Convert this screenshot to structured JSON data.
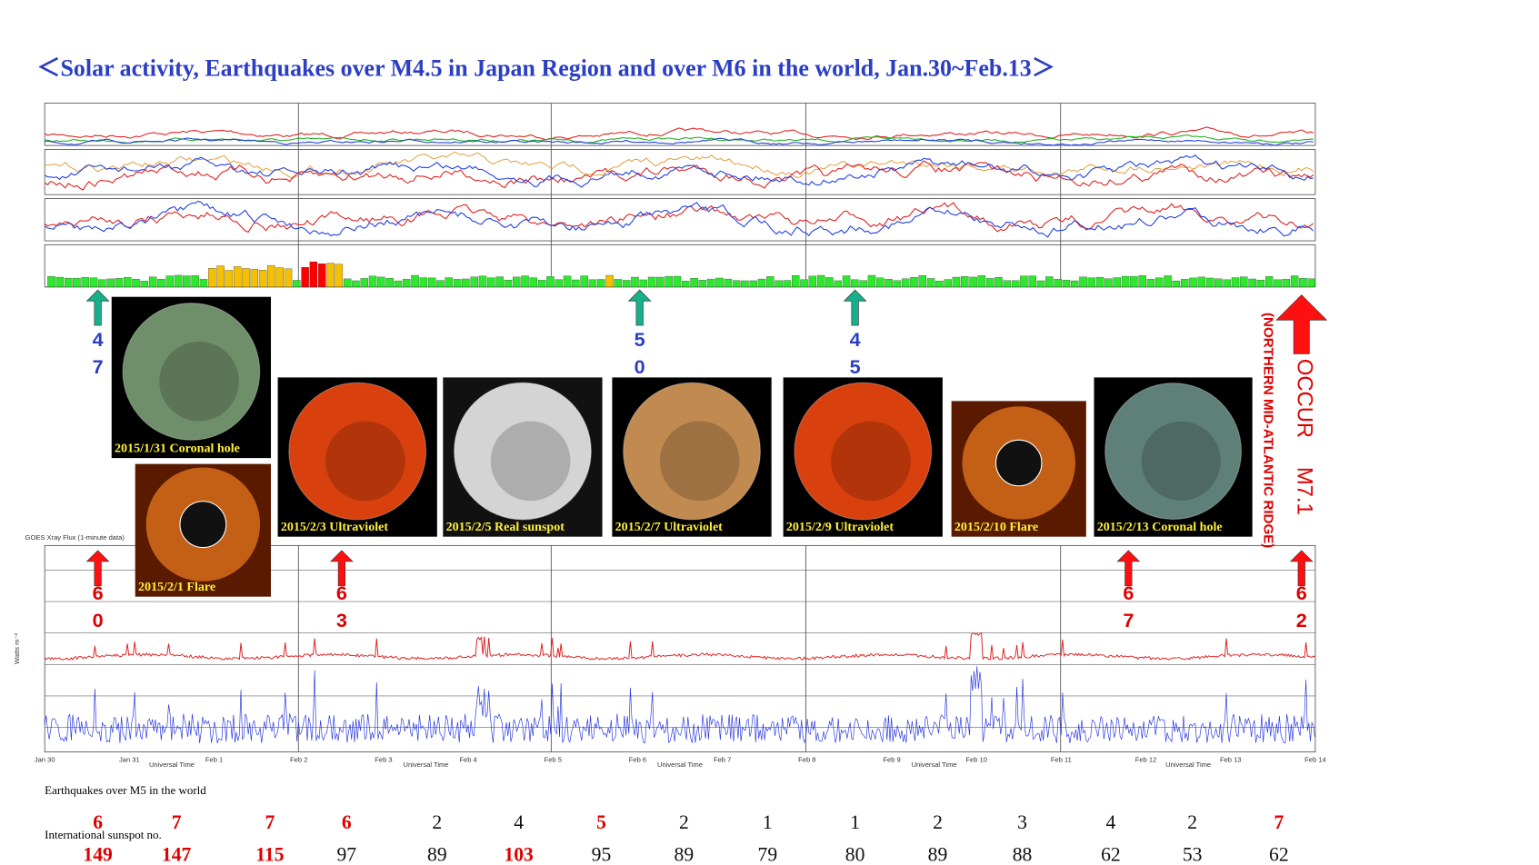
{
  "title": "＜Solar activity, Earthquakes over M4.5 in Japan Region and over M6 in the world, Jan.30~Feb.13＞",
  "xray_title": "GOES Xray Flux (1-minute data)",
  "xray_ylabel": "Watts m⁻²",
  "xray_xlabel": "Universal Time",
  "date_labels": [
    "Jan 30",
    "Jan 31",
    "Feb 1",
    "Feb 2",
    "Feb 3",
    "Feb 4",
    "Feb 5",
    "Feb 6",
    "Feb 7",
    "Feb 8",
    "Feb 9",
    "Feb 10",
    "Feb 11",
    "Feb 12",
    "Feb 13",
    "Feb 14"
  ],
  "images": [
    {
      "caption": "2015/1/31 Coronal hole",
      "color": "#6f8f6a",
      "coronagraph": false
    },
    {
      "caption": "2015/2/1 Flare",
      "color": "#e8781e",
      "coronagraph": true
    },
    {
      "caption": "2015/2/3 Ultraviolet",
      "color": "#d8400e",
      "coronagraph": false
    },
    {
      "caption": "2015/2/5 Real sunspot",
      "color": "#d4d4d4",
      "coronagraph": false
    },
    {
      "caption": "2015/2/7 Ultraviolet",
      "color": "#c08a50",
      "coronagraph": false
    },
    {
      "caption": "2015/2/9 Ultraviolet",
      "color": "#d8400e",
      "coronagraph": false
    },
    {
      "caption": "2015/2/10 Flare",
      "color": "#e8781e",
      "coronagraph": true
    },
    {
      "caption": "2015/2/13 Coronal hole",
      "color": "#5f8078",
      "coronagraph": false
    }
  ],
  "japan_quakes": [
    "4.7",
    "5.0",
    "4.5"
  ],
  "world_quakes": [
    "6.0",
    "6.3",
    "6.7",
    "6.2"
  ],
  "major_quake": {
    "label": "OCCUR",
    "magnitude": "M7.1",
    "location": "(NORTHERN MID-ATLANTIC RIDGE)"
  },
  "world_count_label": "Earthquakes over M5 in the world",
  "world_counts": [
    6,
    7,
    7,
    6,
    2,
    4,
    5,
    2,
    1,
    1,
    2,
    3,
    4,
    2,
    7
  ],
  "world_counts_colors": [
    "#e00000",
    "#e00000",
    "#e00000",
    "#e00000",
    "#111",
    "#111",
    "#e00000",
    "#111",
    "#111",
    "#111",
    "#111",
    "#111",
    "#111",
    "#111",
    "#e00000"
  ],
  "sunspot_label": "International sunspot no.",
  "sunspots": [
    149,
    147,
    115,
    97,
    89,
    103,
    95,
    89,
    79,
    80,
    89,
    88,
    62,
    53,
    62
  ],
  "sunspots_colors": [
    "#e00000",
    "#e00000",
    "#e00000",
    "#111",
    "#111",
    "#e00000",
    "#111",
    "#111",
    "#111",
    "#111",
    "#111",
    "#111",
    "#111",
    "#111",
    "#111"
  ]
}
